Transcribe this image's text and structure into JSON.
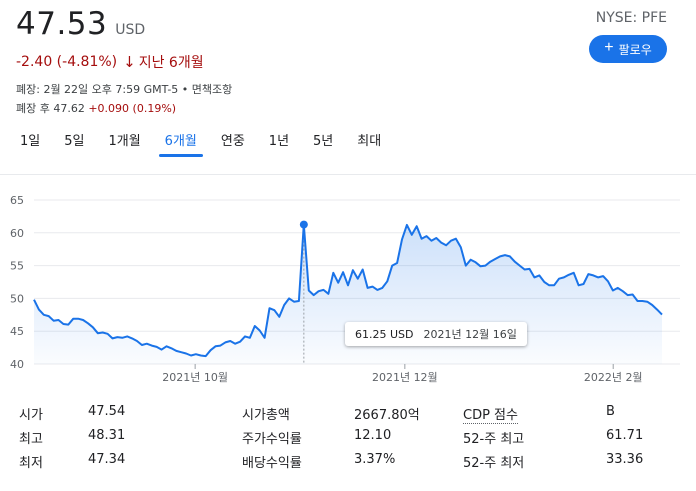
{
  "quote": {
    "price": "47.53",
    "currency": "USD",
    "change": "-2.40 (-4.81%)",
    "change_arrow": "↓",
    "period": "지난 6개월",
    "closed_line": "폐장: 2월 22일 오후 7:59 GMT-5 • 면책조항",
    "after_hours_prefix": "폐장 후 47.62",
    "after_hours_change": "+0.090 (0.19%)"
  },
  "ticker": "NYSE: PFE",
  "follow": {
    "label": "팔로우",
    "icon": "plus-icon"
  },
  "tabs": [
    "1일",
    "5일",
    "1개월",
    "6개월",
    "연중",
    "1년",
    "5년",
    "최대"
  ],
  "active_tab": 3,
  "colors": {
    "line": "#1a73e8",
    "negative": "#a50e0e",
    "grid": "#e8eaed"
  },
  "tooltip": {
    "value": "61.25 USD",
    "date": "2021년 12월 16일"
  },
  "chart_data": {
    "type": "area",
    "title": "",
    "xlabel": "",
    "ylabel": "",
    "ylim": [
      40,
      65
    ],
    "y_ticks": [
      40,
      45,
      50,
      55,
      60,
      65
    ],
    "x_tick_labels": [
      {
        "label": "2021년 10월",
        "t": 0.2566
      },
      {
        "label": "2021년 12월",
        "t": 0.5905
      },
      {
        "label": "2022년 2월",
        "t": 0.9223
      }
    ],
    "grid": true,
    "highlight_index": 55,
    "values": [
      49.8,
      48.3,
      47.5,
      47.3,
      46.6,
      46.7,
      46.1,
      46.0,
      46.9,
      46.9,
      46.7,
      46.2,
      45.6,
      44.7,
      44.8,
      44.6,
      43.9,
      44.1,
      44.0,
      44.2,
      43.9,
      43.5,
      42.9,
      43.1,
      42.8,
      42.6,
      42.2,
      42.7,
      42.4,
      42.0,
      41.8,
      41.6,
      41.3,
      41.5,
      41.3,
      41.2,
      42.1,
      42.7,
      42.8,
      43.3,
      43.5,
      43.1,
      43.4,
      44.2,
      44.0,
      45.8,
      45.1,
      44.0,
      48.5,
      48.2,
      47.2,
      49.0,
      50.0,
      49.5,
      49.6,
      61.25,
      51.2,
      50.5,
      51.1,
      51.3,
      50.7,
      53.9,
      52.4,
      54.0,
      52.0,
      54.3,
      53.0,
      54.4,
      51.6,
      51.8,
      51.3,
      51.6,
      52.6,
      55.0,
      55.4,
      59.0,
      61.2,
      59.7,
      61.0,
      59.1,
      59.5,
      58.8,
      59.2,
      58.5,
      58.1,
      58.8,
      59.1,
      57.8,
      55.0,
      55.9,
      55.5,
      54.9,
      55.0,
      55.6,
      56.0,
      56.4,
      56.6,
      56.4,
      55.6,
      55.0,
      54.4,
      54.5,
      53.2,
      53.5,
      52.5,
      52.0,
      52.0,
      53.0,
      53.2,
      53.6,
      53.9,
      52.0,
      52.2,
      53.7,
      53.5,
      53.2,
      53.4,
      52.6,
      51.2,
      51.6,
      51.1,
      50.5,
      50.6,
      49.6,
      49.6,
      49.5,
      49.0,
      48.3,
      47.53
    ]
  },
  "stats": [
    {
      "l1": "시가",
      "v1": "47.54",
      "l2": "시가총액",
      "v2": "2667.80억",
      "l3": "CDP 점수",
      "v3": "B"
    },
    {
      "l1": "최고",
      "v1": "48.31",
      "l2": "주가수익률",
      "v2": "12.10",
      "l3": "52-주 최고",
      "v3": "61.71"
    },
    {
      "l1": "최저",
      "v1": "47.34",
      "l2": "배당수익률",
      "v2": "3.37%",
      "l3": "52-주 최저",
      "v3": "33.36"
    }
  ]
}
